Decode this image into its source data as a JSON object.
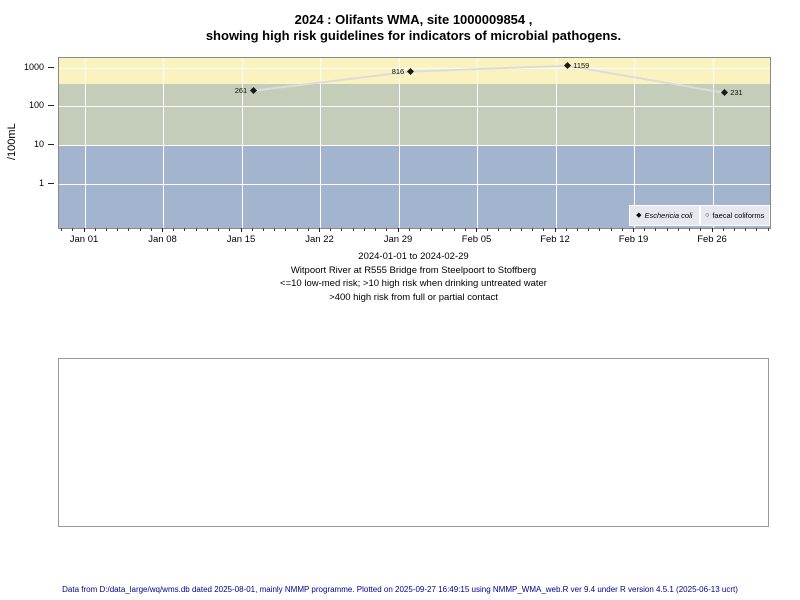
{
  "title": {
    "line1": "2024 : Olifants WMA, site 1000009854 ,",
    "line2": "showing high risk guidelines for indicators of microbial pathogens."
  },
  "chart_data": {
    "type": "line",
    "yscale": "log",
    "ylabel": "/100mL",
    "yticks": [
      1,
      10,
      100,
      1000
    ],
    "ylim": [
      0.1,
      1200
    ],
    "x_range": "2024-01-01 to 2024-02-29",
    "xticks": [
      {
        "label": "Jan 01",
        "day": 0
      },
      {
        "label": "Jan 08",
        "day": 7
      },
      {
        "label": "Jan 15",
        "day": 14
      },
      {
        "label": "Jan 22",
        "day": 21
      },
      {
        "label": "Jan 29",
        "day": 28
      },
      {
        "label": "Feb 05",
        "day": 35
      },
      {
        "label": "Feb 12",
        "day": 42
      },
      {
        "label": "Feb 19",
        "day": 49
      },
      {
        "label": "Feb 26",
        "day": 56
      }
    ],
    "bands": [
      {
        "min": 400,
        "max": null,
        "color": "#faf3c0",
        "meaning": "high risk from full or partial contact"
      },
      {
        "min": 10,
        "max": 400,
        "color": "#c4cdb9",
        "meaning": "high risk when drinking untreated water"
      },
      {
        "min": null,
        "max": 10,
        "color": "#a3b4ce",
        "meaning": "low-med risk"
      }
    ],
    "grid": true,
    "line_color": "#dcdcdc",
    "series": [
      {
        "name": "Eschericia coli",
        "marker": "filled-diamond",
        "points": [
          {
            "day": 15,
            "date": "Jan 16",
            "value": 261,
            "label": "261",
            "label_side": "left"
          },
          {
            "day": 29,
            "date": "Jan 30",
            "value": 816,
            "label": "816",
            "label_side": "left"
          },
          {
            "day": 43,
            "date": "Feb 13",
            "value": 1159,
            "label": "1159",
            "label_side": "right"
          },
          {
            "day": 57,
            "date": "Feb 27",
            "value": 231,
            "label": "231",
            "label_side": "right"
          }
        ]
      },
      {
        "name": "faecal coliforms",
        "marker": "open-circle",
        "points": []
      }
    ],
    "legend": {
      "position": "bottom-right",
      "items": [
        {
          "marker": "◆",
          "label": "Eschericia coli",
          "italic": true
        },
        {
          "marker": "○",
          "label": "faecal coliforms",
          "italic": false
        }
      ]
    }
  },
  "caption": {
    "line1": "2024-01-01 to 2024-02-29",
    "line2": "Witpoort River at R555 Bridge from Steelpoort to Stoffberg",
    "line3": "<=10 low-med risk; >10 high risk when drinking untreated water",
    "line4": ">400 high risk from full or partial contact"
  },
  "footer": {
    "text": "Data from D:/data_large/wq/wms.db dated 2025-08-01, mainly NMMP programme. Plotted on 2025-09-27 16:49:15 using NMMP_WMA_web.R ver 9.4 under R version 4.5.1 (2025-06-13 ucrt)"
  }
}
